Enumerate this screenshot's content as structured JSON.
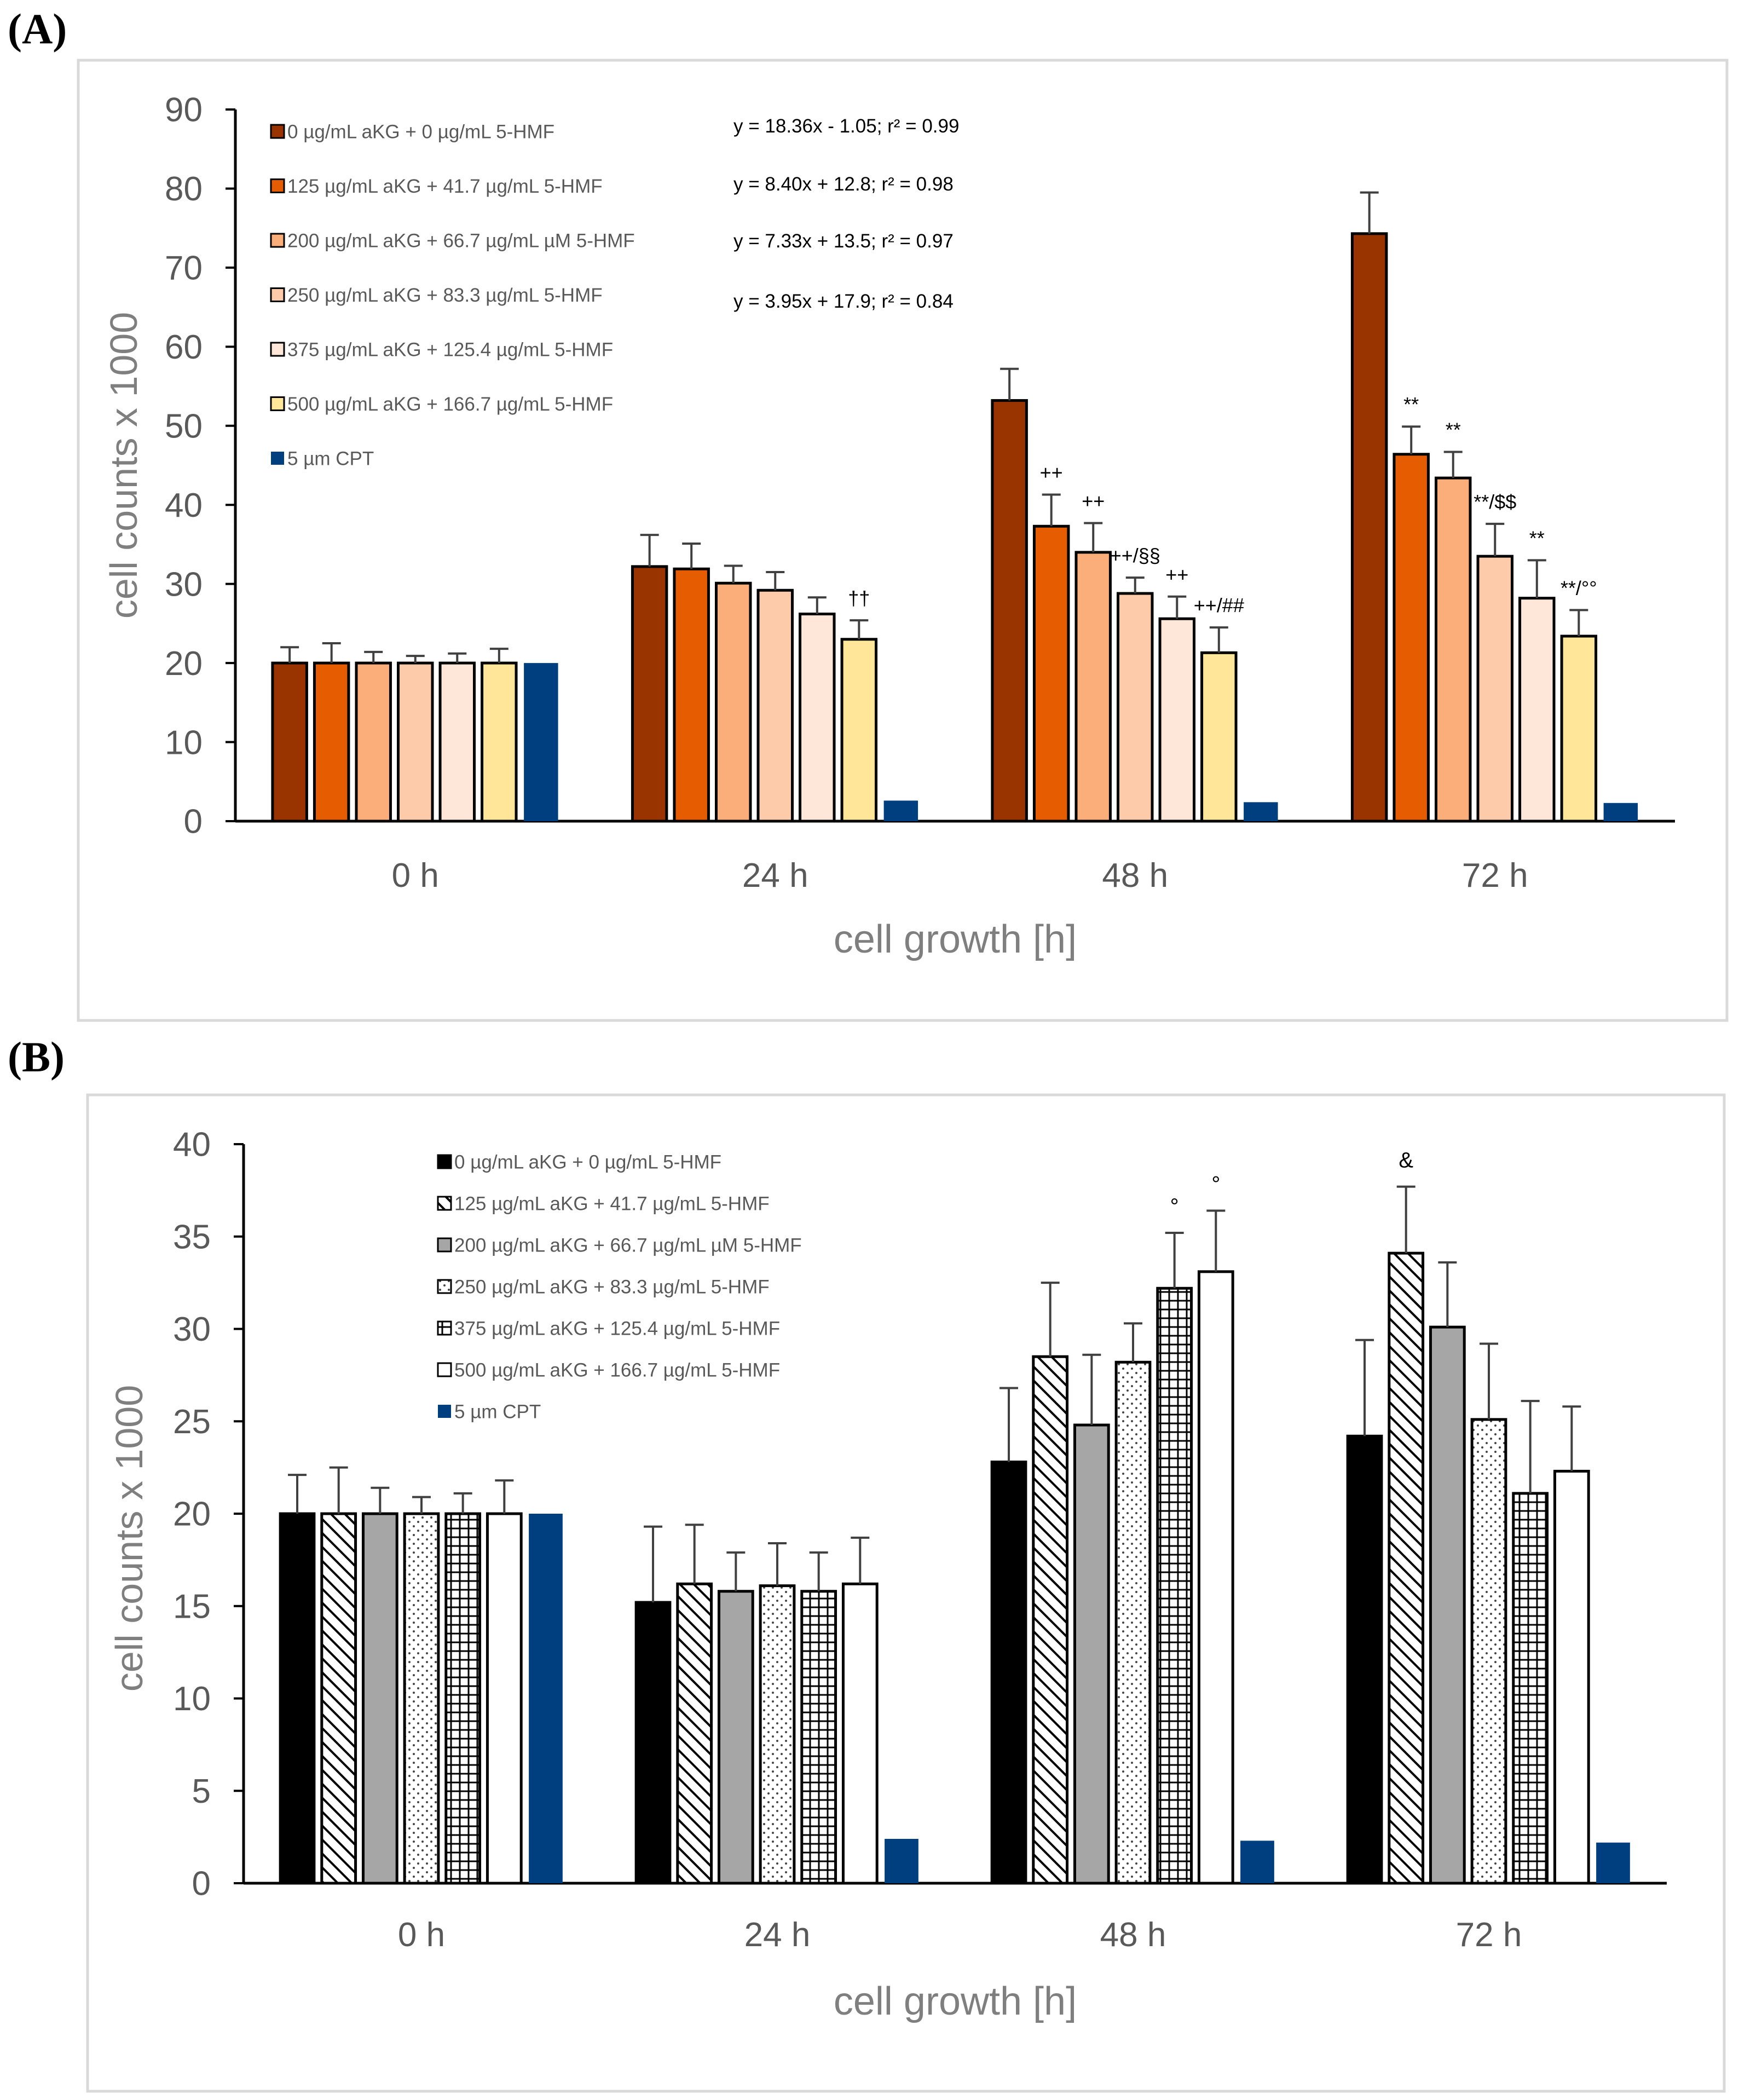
{
  "panels": [
    {
      "letter": "(A)"
    },
    {
      "letter": "(B)"
    }
  ],
  "chart_data": [
    {
      "type": "bar",
      "panel": "A",
      "xlabel": "cell growth [h]",
      "ylabel": "cell counts x 1000",
      "ylim": [
        0,
        90
      ],
      "yticks": [
        0,
        10,
        20,
        30,
        40,
        50,
        60,
        70,
        80,
        90
      ],
      "categories": [
        "0 h",
        "24 h",
        "48 h",
        "72 h"
      ],
      "series": [
        {
          "name": "0 µg/mL aKG + 0 µg/mL 5-HMF",
          "color": "#993300",
          "values": [
            20,
            32.2,
            53.2,
            74.3
          ],
          "errors": [
            2.0,
            4.0,
            4.0,
            5.2
          ]
        },
        {
          "name": "125 µg/mL aKG + 41.7 µg/mL 5-HMF",
          "color": "#e65c00",
          "values": [
            20,
            31.9,
            37.3,
            46.4
          ],
          "errors": [
            2.5,
            3.2,
            4.0,
            3.5
          ]
        },
        {
          "name": "200 µg/mL aKG + 66.7 µg/mL µM 5-HMF",
          "color": "#fbad7a",
          "values": [
            20,
            30.1,
            34.0,
            43.4
          ],
          "errors": [
            1.4,
            2.2,
            3.7,
            3.3
          ]
        },
        {
          "name": "250 µg/mL aKG + 83.3 µg/mL 5-HMF",
          "color": "#fdcbaa",
          "values": [
            20,
            29.2,
            28.8,
            33.5
          ],
          "errors": [
            0.9,
            2.3,
            2.0,
            4.1
          ]
        },
        {
          "name": "375 µg/mL aKG + 125.4 µg/mL 5-HMF",
          "color": "#fee6d8",
          "values": [
            20,
            26.2,
            25.6,
            28.2
          ],
          "errors": [
            1.2,
            2.1,
            2.8,
            4.8
          ]
        },
        {
          "name": "500 µg/mL aKG + 166.7 µg/mL 5-HMF",
          "color": "#ffe699",
          "values": [
            20,
            23.0,
            21.3,
            23.4
          ],
          "errors": [
            1.8,
            2.4,
            3.2,
            3.3
          ]
        },
        {
          "name": "5 µm CPT",
          "color": "#003f7f",
          "values": [
            20,
            2.6,
            2.4,
            2.3
          ],
          "errors": [
            0,
            0,
            0,
            0
          ]
        }
      ],
      "equations": [
        "y = 18.36x - 1.05; r² = 0.99",
        "y = 8.40x + 12.8; r² = 0.98",
        "y = 7.33x + 13.5; r² = 0.97",
        "y = 3.95x + 17.9; r² = 0.84"
      ],
      "annotations": [
        {
          "text": "††",
          "category": 1,
          "series": 5
        },
        {
          "text": "++",
          "category": 2,
          "series": 1
        },
        {
          "text": "++",
          "category": 2,
          "series": 2
        },
        {
          "text": "++/§§",
          "category": 2,
          "series": 3
        },
        {
          "text": "++",
          "category": 2,
          "series": 4
        },
        {
          "text": "++/##",
          "category": 2,
          "series": 5
        },
        {
          "text": "**",
          "category": 3,
          "series": 1
        },
        {
          "text": "**",
          "category": 3,
          "series": 2
        },
        {
          "text": "**/$$",
          "category": 3,
          "series": 3
        },
        {
          "text": "**",
          "category": 3,
          "series": 4
        },
        {
          "text": "**/°°",
          "category": 3,
          "series": 5
        }
      ]
    },
    {
      "type": "bar",
      "panel": "B",
      "xlabel": "cell growth [h]",
      "ylabel": "cell counts x 1000",
      "ylim": [
        0,
        40
      ],
      "yticks": [
        0,
        5,
        10,
        15,
        20,
        25,
        30,
        35,
        40
      ],
      "categories": [
        "0 h",
        "24 h",
        "48 h",
        "72 h"
      ],
      "series": [
        {
          "name": "0 µg/mL aKG + 0 µg/mL 5-HMF",
          "fill": "solid-black",
          "values": [
            20,
            15.2,
            22.8,
            24.2
          ],
          "errors": [
            2.1,
            4.1,
            4.0,
            5.2
          ]
        },
        {
          "name": "125 µg/mL aKG + 41.7 µg/mL 5-HMF",
          "fill": "diagonal-hatch",
          "values": [
            20,
            16.2,
            28.5,
            34.1
          ],
          "errors": [
            2.5,
            3.2,
            4.0,
            3.6
          ]
        },
        {
          "name": "200 µg/mL aKG + 66.7 µg/mL µM 5-HMF",
          "fill": "solid-gray",
          "values": [
            20,
            15.8,
            24.8,
            30.1
          ],
          "errors": [
            1.4,
            2.1,
            3.8,
            3.5
          ]
        },
        {
          "name": "250 µg/mL aKG + 83.3 µg/mL 5-HMF",
          "fill": "dots",
          "values": [
            20,
            16.1,
            28.2,
            25.1
          ],
          "errors": [
            0.9,
            2.3,
            2.1,
            4.1
          ]
        },
        {
          "name": "375 µg/mL aKG + 125.4 µg/mL 5-HMF",
          "fill": "grid",
          "values": [
            20,
            15.8,
            32.2,
            21.1
          ],
          "errors": [
            1.1,
            2.1,
            3.0,
            5.0
          ]
        },
        {
          "name": "500 µg/mL aKG + 166.7 µg/mL 5-HMF",
          "fill": "white",
          "values": [
            20,
            16.2,
            33.1,
            22.3
          ],
          "errors": [
            1.8,
            2.5,
            3.3,
            3.5
          ]
        },
        {
          "name": "5 µm CPT",
          "fill": "solid-blue",
          "values": [
            20,
            2.4,
            2.3,
            2.2
          ],
          "errors": [
            0,
            0,
            0,
            0
          ]
        }
      ],
      "annotations": [
        {
          "text": "°",
          "category": 2,
          "series": 4
        },
        {
          "text": "°",
          "category": 2,
          "series": 5
        },
        {
          "text": "&",
          "category": 3,
          "series": 1
        }
      ]
    }
  ]
}
